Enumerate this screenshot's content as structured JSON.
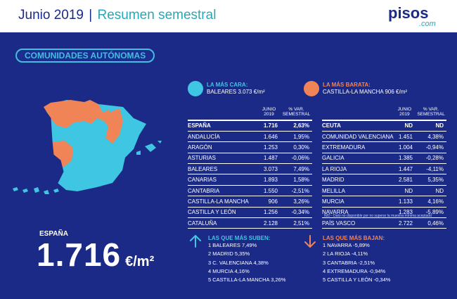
{
  "header": {
    "title": "Junio 2019",
    "separator": "|",
    "subtitle": "Resumen semestral",
    "logo_main": "pisos",
    "logo_sub": ".com"
  },
  "section_label": "COMUNIDADES AUTÓNOMAS",
  "legend": {
    "expensive": {
      "label": "LA MÁS CARA:",
      "value": "BALEARES 3.073 €/m²",
      "color": "#3fc6e2"
    },
    "cheapest": {
      "label": "LA MÁS BARATA:",
      "value": "CASTILLA-LA MANCHA 906 €/m²",
      "color": "#f08457"
    }
  },
  "table_headers": {
    "col1": "JUNIO 2019",
    "col2": "% VAR. SEMESTRAL"
  },
  "table_left": [
    {
      "name": "España",
      "value": "1.716",
      "change": "2,63%"
    },
    {
      "name": "Andalucía",
      "value": "1.646",
      "change": "1,95%"
    },
    {
      "name": "Aragón",
      "value": "1.253",
      "change": "0,30%"
    },
    {
      "name": "Asturias",
      "value": "1.487",
      "change": "-0,06%"
    },
    {
      "name": "Baleares",
      "value": "3.073",
      "change": "7,49%"
    },
    {
      "name": "Canarias",
      "value": "1.893",
      "change": "1,58%"
    },
    {
      "name": "Cantabria",
      "value": "1.550",
      "change": "-2,51%"
    },
    {
      "name": "Castilla-La Mancha",
      "value": "906",
      "change": "3,26%"
    },
    {
      "name": "Castilla y León",
      "value": "1.256",
      "change": "-0,34%"
    },
    {
      "name": "Cataluña",
      "value": "2.128",
      "change": "2,51%"
    }
  ],
  "table_right": [
    {
      "name": "Ceuta",
      "value": "ND",
      "change": "ND"
    },
    {
      "name": "Comunidad Valenciana",
      "value": "1.451",
      "change": "4,38%"
    },
    {
      "name": "Extremadura",
      "value": "1.004",
      "change": "-0,94%"
    },
    {
      "name": "Galicia",
      "value": "1.385",
      "change": "-0,28%"
    },
    {
      "name": "La Rioja",
      "value": "1.447",
      "change": "-4,11%"
    },
    {
      "name": "Madrid",
      "value": "2.581",
      "change": "5,35%"
    },
    {
      "name": "Melilla",
      "value": "ND",
      "change": "ND"
    },
    {
      "name": "Murcia",
      "value": "1.133",
      "change": "4,16%"
    },
    {
      "name": "Navarra",
      "value": "1.283",
      "change": "-5,89%"
    },
    {
      "name": "País Vasco",
      "value": "2.722",
      "change": "0,46%"
    }
  ],
  "footnote": "N/D - Dato no disponible por no superar la muestra mínima aceptada",
  "national": {
    "label": "ESPAÑA",
    "value": "1.716",
    "unit": "€/m²"
  },
  "top_rises": {
    "title": "LAS QUE MÁS SUBEN:",
    "items": [
      "1 BALEARES 7,49%",
      "2 MADRID 5,35%",
      "3 C. VALENCIANA 4,38%",
      "4 MURCIA 4,16%",
      "5 CASTILLA-LA MANCHA 3,26%"
    ]
  },
  "top_falls": {
    "title": "LAS QUE MÁS BAJAN:",
    "items": [
      "1 NAVARRA -5,89%",
      "2 LA RIOJA -4,11%",
      "3 CANTABRIA -2,51%",
      "4 EXTREMADURA -0,94%",
      "5 CASTILLA Y LEÓN -0,34%"
    ]
  },
  "colors": {
    "background": "#1a2a86",
    "accent_cyan": "#3fc6e2",
    "accent_orange": "#f08457",
    "teal_title": "#2aa7b6"
  },
  "icons": {
    "up": "arrow-up-icon",
    "down": "arrow-down-icon",
    "map": "spain-map"
  }
}
